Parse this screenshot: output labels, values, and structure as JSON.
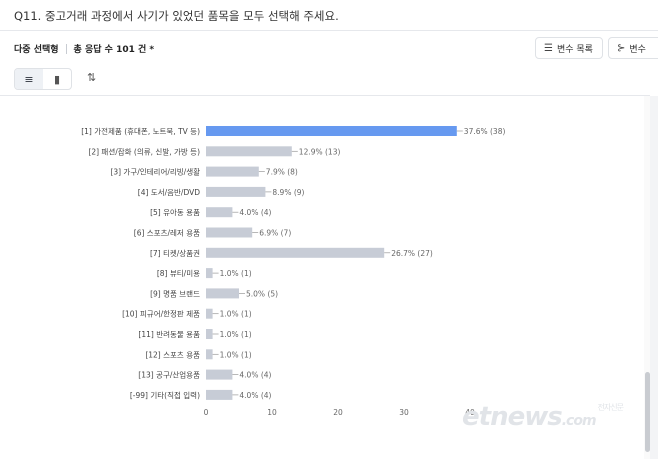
{
  "question": "Q11. 중고거래 과정에서 사기가 있었던 품목을 모두 선택해 주세요.",
  "meta": {
    "type_label": "다중 선택형",
    "count_label": "총 응답 수 101 건 *"
  },
  "toolbar": {
    "var_list_label": "변수 목록",
    "var_label_2": "변수"
  },
  "icons": {
    "horizontal_bar": "horizontal-bar-icon",
    "vertical_bar": "vertical-bar-icon",
    "sort": "sort-icon",
    "list": "list-icon",
    "branch": "branch-icon"
  },
  "colors": {
    "highlight_bar": "#6699f0",
    "bar": "#c7ccd6"
  },
  "chart_data": {
    "type": "bar",
    "orientation": "horizontal",
    "categories": [
      "[1] 가전제품 (휴대폰, 노트북, TV 등)",
      "[2] 패션/잡화 (의류, 신발, 가방 등)",
      "[3] 가구/인테리어/리빙/생활",
      "[4] 도서/음반/DVD",
      "[5] 유아동 용품",
      "[6] 스포츠/레저 용품",
      "[7] 티켓/상품권",
      "[8] 뷰티/미용",
      "[9] 명품 브랜드",
      "[10] 피규어/한정판 제품",
      "[11] 반려동물 용품",
      "[12] 스포츠 용품",
      "[13] 공구/산업용품",
      "[-99] 기타(직접 입력)"
    ],
    "values": [
      38,
      13,
      8,
      9,
      4,
      7,
      27,
      1,
      5,
      1,
      1,
      1,
      4,
      4
    ],
    "value_labels": [
      "37.6% (38)",
      "12.9% (13)",
      "7.9% (8)",
      "8.9% (9)",
      "4.0% (4)",
      "6.9% (7)",
      "26.7% (27)",
      "1.0% (1)",
      "5.0% (5)",
      "1.0% (1)",
      "1.0% (1)",
      "1.0% (1)",
      "4.0% (4)",
      "4.0% (4)"
    ],
    "highlight_index": 0,
    "xlim": [
      0,
      40
    ],
    "xticks": [
      0,
      10,
      20,
      30,
      40
    ],
    "grid": false,
    "title": "",
    "xlabel": "",
    "ylabel": ""
  },
  "watermark": {
    "logo_text": "etnews",
    "logo_suffix": ".com",
    "logo_kr": "전자신문"
  }
}
